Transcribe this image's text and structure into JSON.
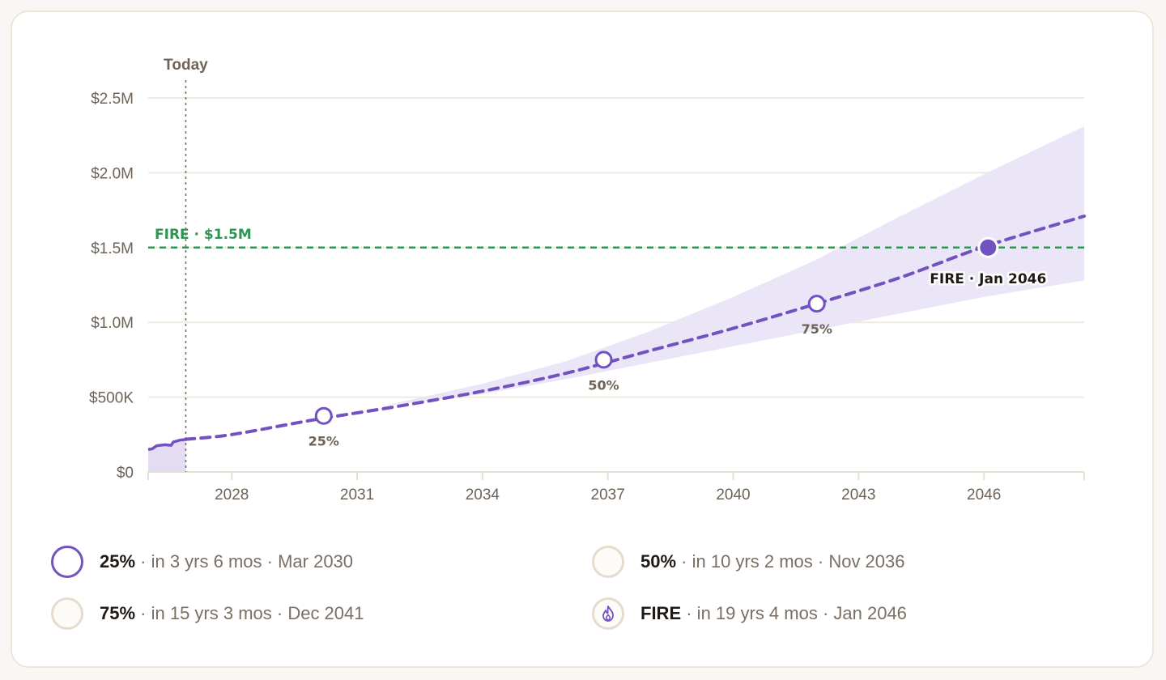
{
  "chart_data": {
    "type": "line",
    "today_label": "Today",
    "today_x": 2026.9,
    "xlim": [
      2026,
      2048.4
    ],
    "ylim": [
      0,
      2500000
    ],
    "x_ticks": [
      2028,
      2031,
      2034,
      2037,
      2040,
      2043,
      2046
    ],
    "x_tick_labels": [
      "2028",
      "2031",
      "2034",
      "2037",
      "2040",
      "2043",
      "2046"
    ],
    "y_ticks": [
      0,
      500000,
      1000000,
      1500000,
      2000000,
      2500000
    ],
    "y_tick_labels": [
      "$0",
      "$500K",
      "$1.0M",
      "$1.5M",
      "$2.0M",
      "$2.5M"
    ],
    "fire_target": {
      "label": "FIRE · $1.5M",
      "value": 1500000,
      "color": "#2e9553"
    },
    "history": {
      "x": [
        2026.0,
        2026.1,
        2026.2,
        2026.4,
        2026.55,
        2026.6,
        2026.75,
        2026.9
      ],
      "y": [
        150000,
        155000,
        175000,
        182000,
        178000,
        200000,
        212000,
        218000
      ]
    },
    "projection": {
      "x": [
        2026.9,
        2028,
        2030,
        2032,
        2034,
        2036,
        2038,
        2040,
        2042,
        2044,
        2046,
        2048.4
      ],
      "y": [
        218000,
        250000,
        350000,
        440000,
        540000,
        660000,
        810000,
        960000,
        1125000,
        1300000,
        1505000,
        1710000
      ]
    },
    "band": {
      "x": [
        2031.6,
        2034,
        2036,
        2038,
        2040,
        2042,
        2044,
        2046,
        2048.4
      ],
      "lower": [
        440000,
        520000,
        620000,
        730000,
        840000,
        950000,
        1060000,
        1170000,
        1280000
      ],
      "upper": [
        440000,
        590000,
        740000,
        940000,
        1170000,
        1420000,
        1710000,
        1990000,
        2310000
      ]
    },
    "milestones": [
      {
        "label": "25%",
        "x": 2030.2,
        "y": 375000
      },
      {
        "label": "50%",
        "x": 2036.9,
        "y": 750000
      },
      {
        "label": "75%",
        "x": 2042.0,
        "y": 1125000
      },
      {
        "label": "FIRE · Jan 2046",
        "x": 2046.1,
        "y": 1500000,
        "final": true
      }
    ],
    "colors": {
      "line": "#7252c0",
      "band": "#ebe6f7",
      "grid": "#efe9df",
      "axis": "#e6dfd3",
      "today": "#7a6f63"
    }
  },
  "legend": [
    {
      "pct": "25%",
      "detail": " · in 3 yrs 6 mos · Mar 2030",
      "active": true,
      "icon": "ring-icon"
    },
    {
      "pct": "50%",
      "detail": " · in 10 yrs 2 mos · Nov 2036",
      "active": false,
      "icon": "ring-icon"
    },
    {
      "pct": "75%",
      "detail": " · in 15 yrs 3 mos · Dec 2041",
      "active": false,
      "icon": "ring-icon"
    },
    {
      "pct": "FIRE",
      "detail": " · in 19 yrs 4 mos · Jan 2046",
      "active": false,
      "icon": "flame-icon"
    }
  ]
}
